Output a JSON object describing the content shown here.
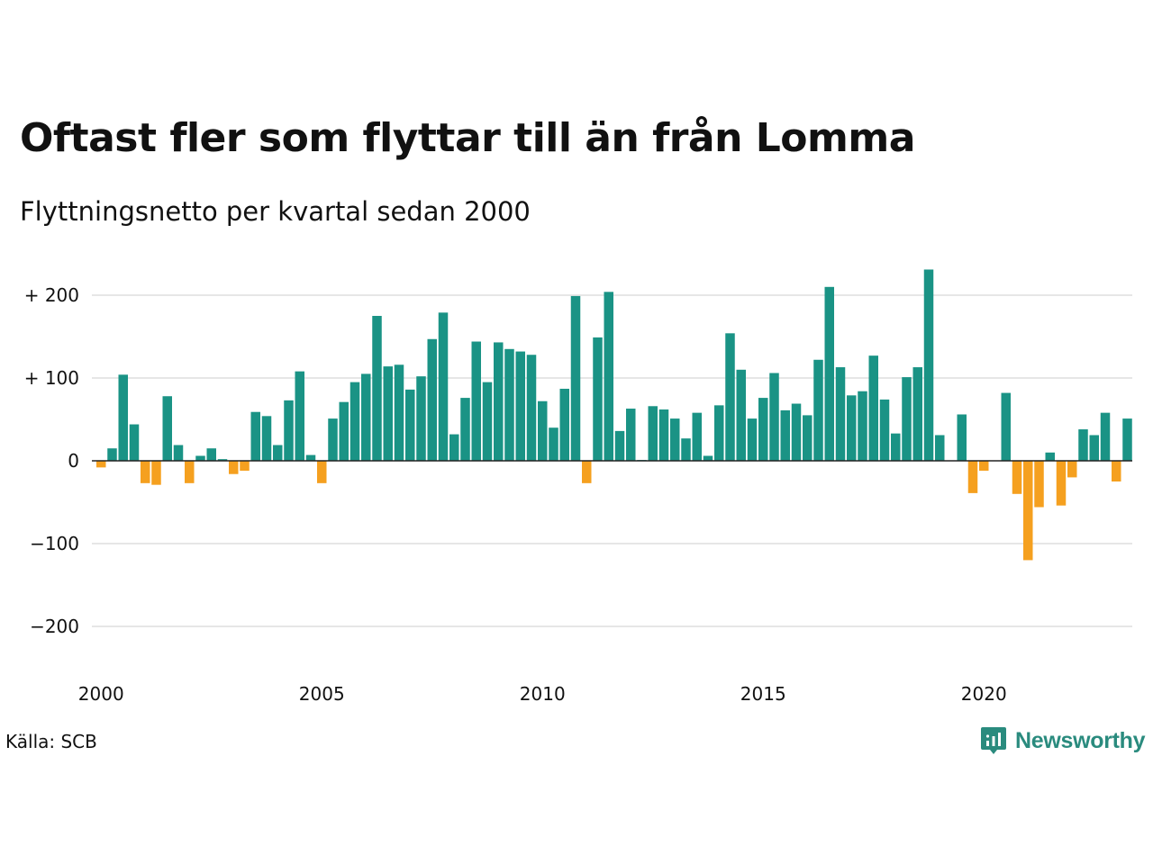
{
  "chart_data": {
    "type": "bar",
    "title": "Oftast fler som flyttar till än från Lomma",
    "subtitle": "Flyttningsnetto per kvartal sedan 2000",
    "xlabel": "",
    "ylabel": "",
    "x_start_year": 2000,
    "x_tick_labels": [
      "2000",
      "2005",
      "2010",
      "2015",
      "2020"
    ],
    "y_ticks": [
      200,
      100,
      0,
      -100,
      -200
    ],
    "y_tick_labels": [
      "+ 200",
      "+ 100",
      "0",
      "−100",
      "−200"
    ],
    "ylim": [
      -240,
      240
    ],
    "grid": true,
    "legend": "none",
    "positive_color": "#1a9385",
    "negative_color": "#f5a01f",
    "values": [
      -8,
      15,
      104,
      44,
      -27,
      -29,
      78,
      19,
      -27,
      6,
      15,
      2,
      -16,
      -12,
      59,
      54,
      19,
      73,
      108,
      7,
      -27,
      51,
      71,
      95,
      105,
      175,
      114,
      116,
      86,
      102,
      147,
      179,
      32,
      76,
      144,
      95,
      143,
      135,
      132,
      128,
      72,
      40,
      87,
      199,
      -27,
      149,
      204,
      36,
      63,
      1,
      66,
      62,
      51,
      27,
      58,
      6,
      67,
      154,
      110,
      51,
      76,
      106,
      61,
      69,
      55,
      122,
      210,
      113,
      79,
      84,
      127,
      74,
      33,
      101,
      113,
      231,
      31,
      0,
      56,
      -39,
      -12,
      0,
      82,
      -40,
      -120,
      -56,
      10,
      -54,
      -20,
      38,
      31,
      58,
      -25,
      51
    ]
  },
  "footer": {
    "source": "Källa: SCB",
    "brand": "Newsworthy",
    "brand_color": "#2a8b7e",
    "brand_icon": "newsworthy-logo-icon"
  }
}
